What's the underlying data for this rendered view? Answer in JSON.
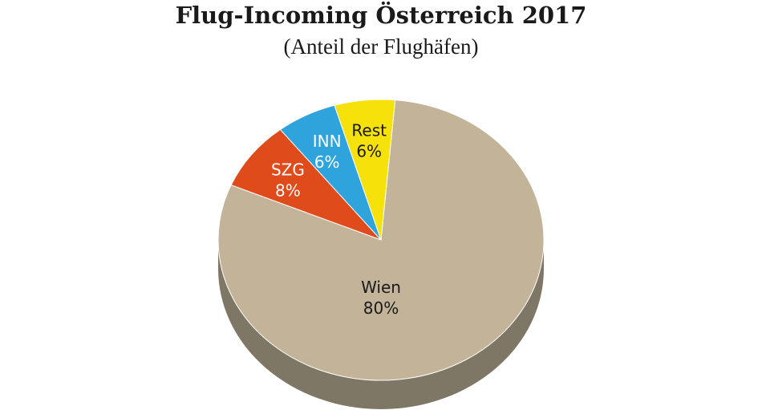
{
  "chart_data": {
    "type": "pie",
    "title": "Flug-Incoming Österreich 2017",
    "subtitle": "(Anteil der Flughäfen)",
    "slices": [
      {
        "name": "Wien",
        "value": 80,
        "label": "80%",
        "color": "#c2b399",
        "side_color": "#7f7766",
        "text_color": "#1a1a1a"
      },
      {
        "name": "SZG",
        "value": 8,
        "label": "8%",
        "color": "#df4b1a",
        "side_color": "#9a3412",
        "text_color": "#ffffff"
      },
      {
        "name": "INN",
        "value": 6,
        "label": "6%",
        "color": "#2ea3dc",
        "side_color": "#1d6f95",
        "text_color": "#ffffff"
      },
      {
        "name": "Rest",
        "value": 6,
        "label": "6%",
        "color": "#f6e10b",
        "side_color": "#a89a08",
        "text_color": "#1a1a1a"
      }
    ]
  }
}
